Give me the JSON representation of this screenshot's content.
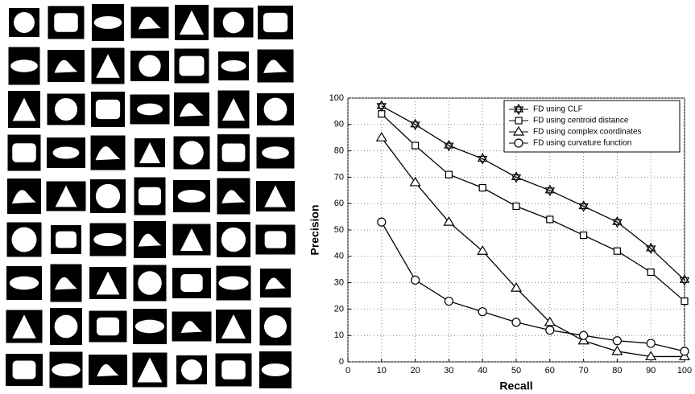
{
  "chart_data": {
    "type": "line",
    "xlabel": "Recall",
    "ylabel": "Precision",
    "x": [
      10,
      20,
      30,
      40,
      50,
      60,
      70,
      80,
      90,
      100
    ],
    "xlim": [
      0,
      100
    ],
    "ylim": [
      0,
      100
    ],
    "xticks": [
      0,
      10,
      20,
      30,
      40,
      50,
      60,
      70,
      80,
      90,
      100
    ],
    "yticks": [
      0,
      10,
      20,
      30,
      40,
      50,
      60,
      70,
      80,
      90,
      100
    ],
    "grid": true,
    "legend": "upper right",
    "series": [
      {
        "name": "FD using CLF",
        "color": "#000000",
        "marker": "star",
        "values": [
          97,
          90,
          82,
          77,
          70,
          65,
          59,
          53,
          43,
          31
        ]
      },
      {
        "name": "FD using centroid distance",
        "color": "#000000",
        "marker": "square",
        "values": [
          94,
          82,
          71,
          66,
          59,
          54,
          48,
          42,
          34,
          23
        ]
      },
      {
        "name": "FD using complex coordinates",
        "color": "#000000",
        "marker": "triangle",
        "values": [
          85,
          68,
          53,
          42,
          28,
          15,
          8,
          4,
          2,
          2
        ]
      },
      {
        "name": "FD using curvature function",
        "color": "#000000",
        "marker": "circle",
        "values": [
          53,
          31,
          23,
          19,
          15,
          12,
          10,
          8,
          7,
          4
        ]
      }
    ]
  }
}
